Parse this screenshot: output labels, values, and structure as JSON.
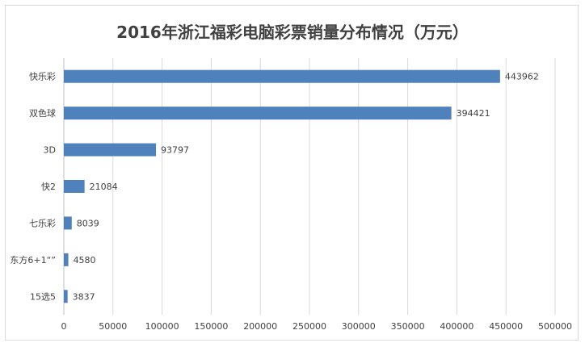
{
  "chart_data": {
    "type": "bar",
    "orientation": "horizontal",
    "title": "2016年浙江福彩电脑彩票销量分布情况（万元）",
    "categories": [
      "快乐彩",
      "双色球",
      "3D",
      "快2",
      "七乐彩",
      "东方6+1“”",
      "15选5"
    ],
    "values": [
      443962,
      394421,
      93797,
      21084,
      8039,
      4580,
      3837
    ],
    "data_labels": [
      "443962",
      "394421",
      "93797",
      "21084",
      "8039",
      "4580",
      "3837"
    ],
    "xlim": [
      0,
      500000
    ],
    "x_ticks": [
      0,
      50000,
      100000,
      150000,
      200000,
      250000,
      300000,
      350000,
      400000,
      450000,
      500000
    ],
    "x_tick_labels": [
      "0",
      "50000",
      "100000",
      "150000",
      "200000",
      "250000",
      "300000",
      "350000",
      "400000",
      "450000",
      "500000"
    ],
    "grid": "vertical",
    "legend": "none",
    "bar_color": "#4f81bd",
    "grid_color": "#d9d9d9"
  }
}
